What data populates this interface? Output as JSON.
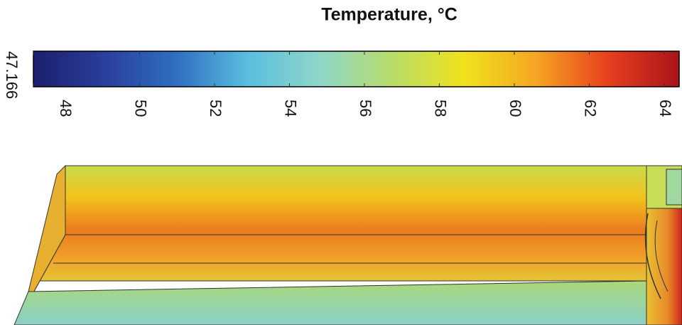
{
  "chart_data": {
    "type": "colorbar",
    "title": "Temperature, °C",
    "xlim": [
      47.166,
      64.4
    ],
    "xticks": [
      47.166,
      48,
      50,
      52,
      54,
      56,
      58,
      60,
      62,
      64
    ],
    "colors": [
      "#1c1f6e",
      "#2a3f9c",
      "#2f6fc0",
      "#5bbfe0",
      "#8fd6c8",
      "#b8dc6a",
      "#f0e21c",
      "#f5a623",
      "#e8401e",
      "#a8141a"
    ]
  }
}
